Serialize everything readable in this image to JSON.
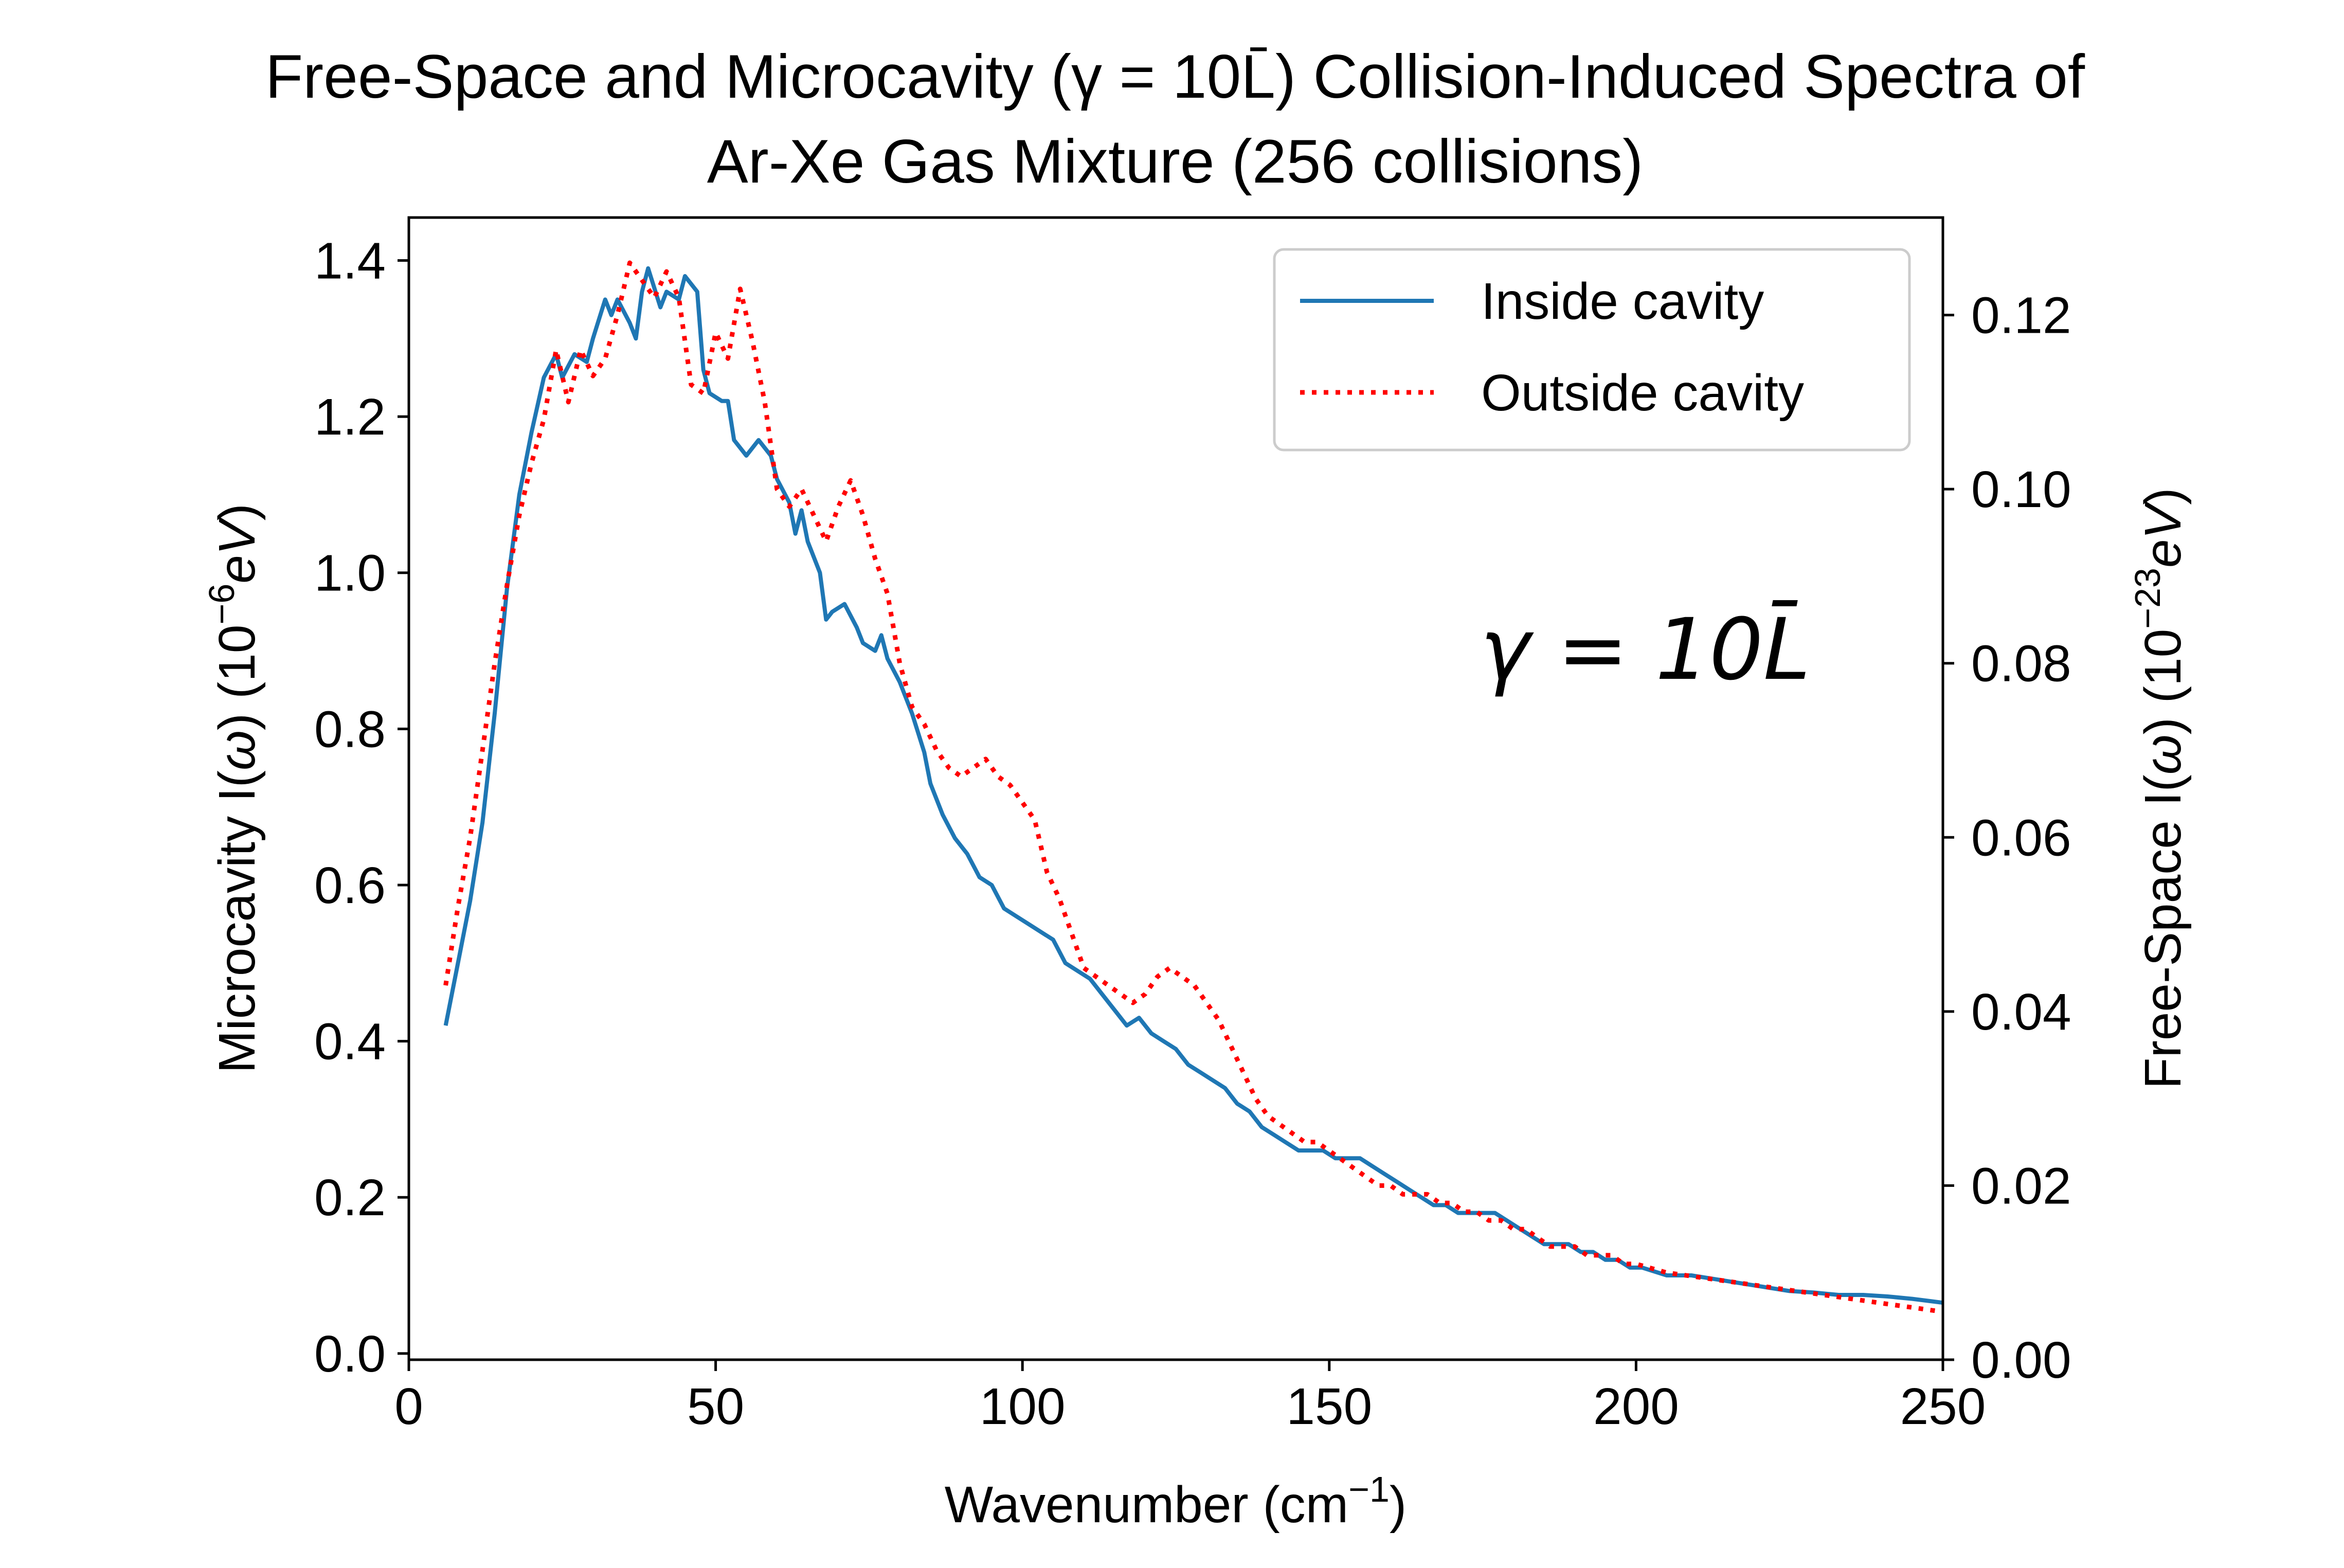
{
  "chart_data": {
    "type": "line",
    "title": [
      "Free-Space and Microcavity (γ = 10L̄) Collision-Induced Spectra of",
      "Ar-Xe Gas Mixture (256 collisions)"
    ],
    "xlabel": "Wavenumber (cm⁻¹)",
    "ylabel_left": "Microcavity I(ω) (10⁻⁶eV)",
    "ylabel_right": "Free-Space I(ω) (10⁻²³eV)",
    "annotation": "γ = 10L̄",
    "xlim": [
      0,
      250
    ],
    "ylim_left": [
      -0.008,
      1.455
    ],
    "ylim_right": [
      0,
      0.1312
    ],
    "x_ticks": [
      "0",
      "50",
      "100",
      "150",
      "200",
      "250"
    ],
    "y_ticks_left": [
      "0.0",
      "0.2",
      "0.4",
      "0.6",
      "0.8",
      "1.0",
      "1.2",
      "1.4"
    ],
    "y_ticks_right": [
      "0.00",
      "0.02",
      "0.04",
      "0.06",
      "0.08",
      "0.10",
      "0.12"
    ],
    "legend_position": "top-right",
    "grid": false,
    "series": [
      {
        "name": "Inside cavity",
        "axis": "left",
        "color": "#1f77b4",
        "style": "solid",
        "points": [
          [
            6,
            0.42
          ],
          [
            8,
            0.5
          ],
          [
            10,
            0.58
          ],
          [
            12,
            0.68
          ],
          [
            14,
            0.82
          ],
          [
            16,
            0.98
          ],
          [
            18,
            1.1
          ],
          [
            20,
            1.18
          ],
          [
            22,
            1.25
          ],
          [
            24,
            1.28
          ],
          [
            25,
            1.25
          ],
          [
            27,
            1.28
          ],
          [
            29,
            1.27
          ],
          [
            30,
            1.3
          ],
          [
            32,
            1.35
          ],
          [
            33,
            1.33
          ],
          [
            34,
            1.35
          ],
          [
            36,
            1.32
          ],
          [
            37,
            1.3
          ],
          [
            38,
            1.36
          ],
          [
            39,
            1.39
          ],
          [
            41,
            1.34
          ],
          [
            42,
            1.36
          ],
          [
            44,
            1.35
          ],
          [
            45,
            1.38
          ],
          [
            47,
            1.36
          ],
          [
            48,
            1.26
          ],
          [
            49,
            1.23
          ],
          [
            51,
            1.22
          ],
          [
            52,
            1.22
          ],
          [
            53,
            1.17
          ],
          [
            55,
            1.15
          ],
          [
            57,
            1.17
          ],
          [
            59,
            1.15
          ],
          [
            60,
            1.12
          ],
          [
            62,
            1.09
          ],
          [
            63,
            1.05
          ],
          [
            64,
            1.08
          ],
          [
            65,
            1.04
          ],
          [
            67,
            1.0
          ],
          [
            68,
            0.94
          ],
          [
            69,
            0.95
          ],
          [
            71,
            0.96
          ],
          [
            73,
            0.93
          ],
          [
            74,
            0.91
          ],
          [
            76,
            0.9
          ],
          [
            77,
            0.92
          ],
          [
            78,
            0.89
          ],
          [
            80,
            0.86
          ],
          [
            82,
            0.82
          ],
          [
            84,
            0.77
          ],
          [
            85,
            0.73
          ],
          [
            87,
            0.69
          ],
          [
            89,
            0.66
          ],
          [
            91,
            0.64
          ],
          [
            93,
            0.61
          ],
          [
            95,
            0.6
          ],
          [
            97,
            0.57
          ],
          [
            99,
            0.56
          ],
          [
            101,
            0.55
          ],
          [
            103,
            0.54
          ],
          [
            105,
            0.53
          ],
          [
            107,
            0.5
          ],
          [
            109,
            0.49
          ],
          [
            111,
            0.48
          ],
          [
            113,
            0.46
          ],
          [
            115,
            0.44
          ],
          [
            117,
            0.42
          ],
          [
            119,
            0.43
          ],
          [
            121,
            0.41
          ],
          [
            123,
            0.4
          ],
          [
            125,
            0.39
          ],
          [
            127,
            0.37
          ],
          [
            129,
            0.36
          ],
          [
            131,
            0.35
          ],
          [
            133,
            0.34
          ],
          [
            135,
            0.32
          ],
          [
            137,
            0.31
          ],
          [
            139,
            0.29
          ],
          [
            141,
            0.28
          ],
          [
            143,
            0.27
          ],
          [
            145,
            0.26
          ],
          [
            147,
            0.26
          ],
          [
            149,
            0.26
          ],
          [
            151,
            0.25
          ],
          [
            153,
            0.25
          ],
          [
            155,
            0.25
          ],
          [
            157,
            0.24
          ],
          [
            159,
            0.23
          ],
          [
            161,
            0.22
          ],
          [
            163,
            0.21
          ],
          [
            165,
            0.2
          ],
          [
            167,
            0.19
          ],
          [
            169,
            0.19
          ],
          [
            171,
            0.18
          ],
          [
            173,
            0.18
          ],
          [
            175,
            0.18
          ],
          [
            177,
            0.18
          ],
          [
            179,
            0.17
          ],
          [
            181,
            0.16
          ],
          [
            183,
            0.15
          ],
          [
            185,
            0.14
          ],
          [
            187,
            0.14
          ],
          [
            189,
            0.14
          ],
          [
            191,
            0.13
          ],
          [
            193,
            0.13
          ],
          [
            195,
            0.12
          ],
          [
            197,
            0.12
          ],
          [
            199,
            0.11
          ],
          [
            201,
            0.11
          ],
          [
            205,
            0.1
          ],
          [
            209,
            0.1
          ],
          [
            213,
            0.095
          ],
          [
            217,
            0.09
          ],
          [
            221,
            0.085
          ],
          [
            225,
            0.08
          ],
          [
            229,
            0.078
          ],
          [
            233,
            0.075
          ],
          [
            237,
            0.075
          ],
          [
            241,
            0.073
          ],
          [
            245,
            0.07
          ],
          [
            248,
            0.067
          ],
          [
            250,
            0.065
          ]
        ]
      },
      {
        "name": "Outside cavity",
        "axis": "right",
        "color": "#ff0000",
        "style": "dotted",
        "points": [
          [
            6,
            0.043
          ],
          [
            8,
            0.052
          ],
          [
            10,
            0.06
          ],
          [
            12,
            0.07
          ],
          [
            14,
            0.08
          ],
          [
            16,
            0.089
          ],
          [
            18,
            0.097
          ],
          [
            20,
            0.103
          ],
          [
            22,
            0.108
          ],
          [
            23,
            0.112
          ],
          [
            24,
            0.116
          ],
          [
            26,
            0.11
          ],
          [
            28,
            0.116
          ],
          [
            30,
            0.113
          ],
          [
            32,
            0.115
          ],
          [
            34,
            0.12
          ],
          [
            36,
            0.126
          ],
          [
            38,
            0.124
          ],
          [
            40,
            0.122
          ],
          [
            42,
            0.125
          ],
          [
            44,
            0.122
          ],
          [
            46,
            0.112
          ],
          [
            48,
            0.111
          ],
          [
            50,
            0.118
          ],
          [
            52,
            0.115
          ],
          [
            54,
            0.123
          ],
          [
            56,
            0.117
          ],
          [
            58,
            0.11
          ],
          [
            60,
            0.1
          ],
          [
            62,
            0.098
          ],
          [
            64,
            0.1
          ],
          [
            66,
            0.097
          ],
          [
            68,
            0.094
          ],
          [
            70,
            0.098
          ],
          [
            72,
            0.101
          ],
          [
            74,
            0.097
          ],
          [
            76,
            0.092
          ],
          [
            78,
            0.088
          ],
          [
            80,
            0.08
          ],
          [
            82,
            0.075
          ],
          [
            84,
            0.073
          ],
          [
            86,
            0.07
          ],
          [
            88,
            0.068
          ],
          [
            90,
            0.067
          ],
          [
            92,
            0.068
          ],
          [
            94,
            0.069
          ],
          [
            96,
            0.067
          ],
          [
            98,
            0.066
          ],
          [
            100,
            0.064
          ],
          [
            102,
            0.062
          ],
          [
            104,
            0.056
          ],
          [
            106,
            0.053
          ],
          [
            108,
            0.049
          ],
          [
            110,
            0.045
          ],
          [
            112,
            0.044
          ],
          [
            114,
            0.043
          ],
          [
            116,
            0.042
          ],
          [
            118,
            0.041
          ],
          [
            120,
            0.042
          ],
          [
            122,
            0.044
          ],
          [
            124,
            0.045
          ],
          [
            126,
            0.044
          ],
          [
            128,
            0.043
          ],
          [
            130,
            0.041
          ],
          [
            132,
            0.039
          ],
          [
            134,
            0.036
          ],
          [
            136,
            0.033
          ],
          [
            138,
            0.03
          ],
          [
            140,
            0.028
          ],
          [
            142,
            0.027
          ],
          [
            144,
            0.026
          ],
          [
            146,
            0.025
          ],
          [
            148,
            0.025
          ],
          [
            150,
            0.024
          ],
          [
            152,
            0.023
          ],
          [
            154,
            0.022
          ],
          [
            156,
            0.021
          ],
          [
            158,
            0.02
          ],
          [
            160,
            0.02
          ],
          [
            162,
            0.019
          ],
          [
            164,
            0.019
          ],
          [
            166,
            0.019
          ],
          [
            168,
            0.018
          ],
          [
            170,
            0.018
          ],
          [
            172,
            0.017
          ],
          [
            174,
            0.017
          ],
          [
            176,
            0.016
          ],
          [
            178,
            0.016
          ],
          [
            180,
            0.015
          ],
          [
            182,
            0.015
          ],
          [
            184,
            0.014
          ],
          [
            186,
            0.013
          ],
          [
            188,
            0.013
          ],
          [
            190,
            0.013
          ],
          [
            192,
            0.012
          ],
          [
            194,
            0.012
          ],
          [
            196,
            0.012
          ],
          [
            198,
            0.011
          ],
          [
            200,
            0.011
          ],
          [
            205,
            0.01
          ],
          [
            210,
            0.0095
          ],
          [
            215,
            0.009
          ],
          [
            220,
            0.0085
          ],
          [
            225,
            0.008
          ],
          [
            230,
            0.0075
          ],
          [
            235,
            0.007
          ],
          [
            240,
            0.0065
          ],
          [
            245,
            0.006
          ],
          [
            250,
            0.0055
          ]
        ]
      }
    ]
  }
}
